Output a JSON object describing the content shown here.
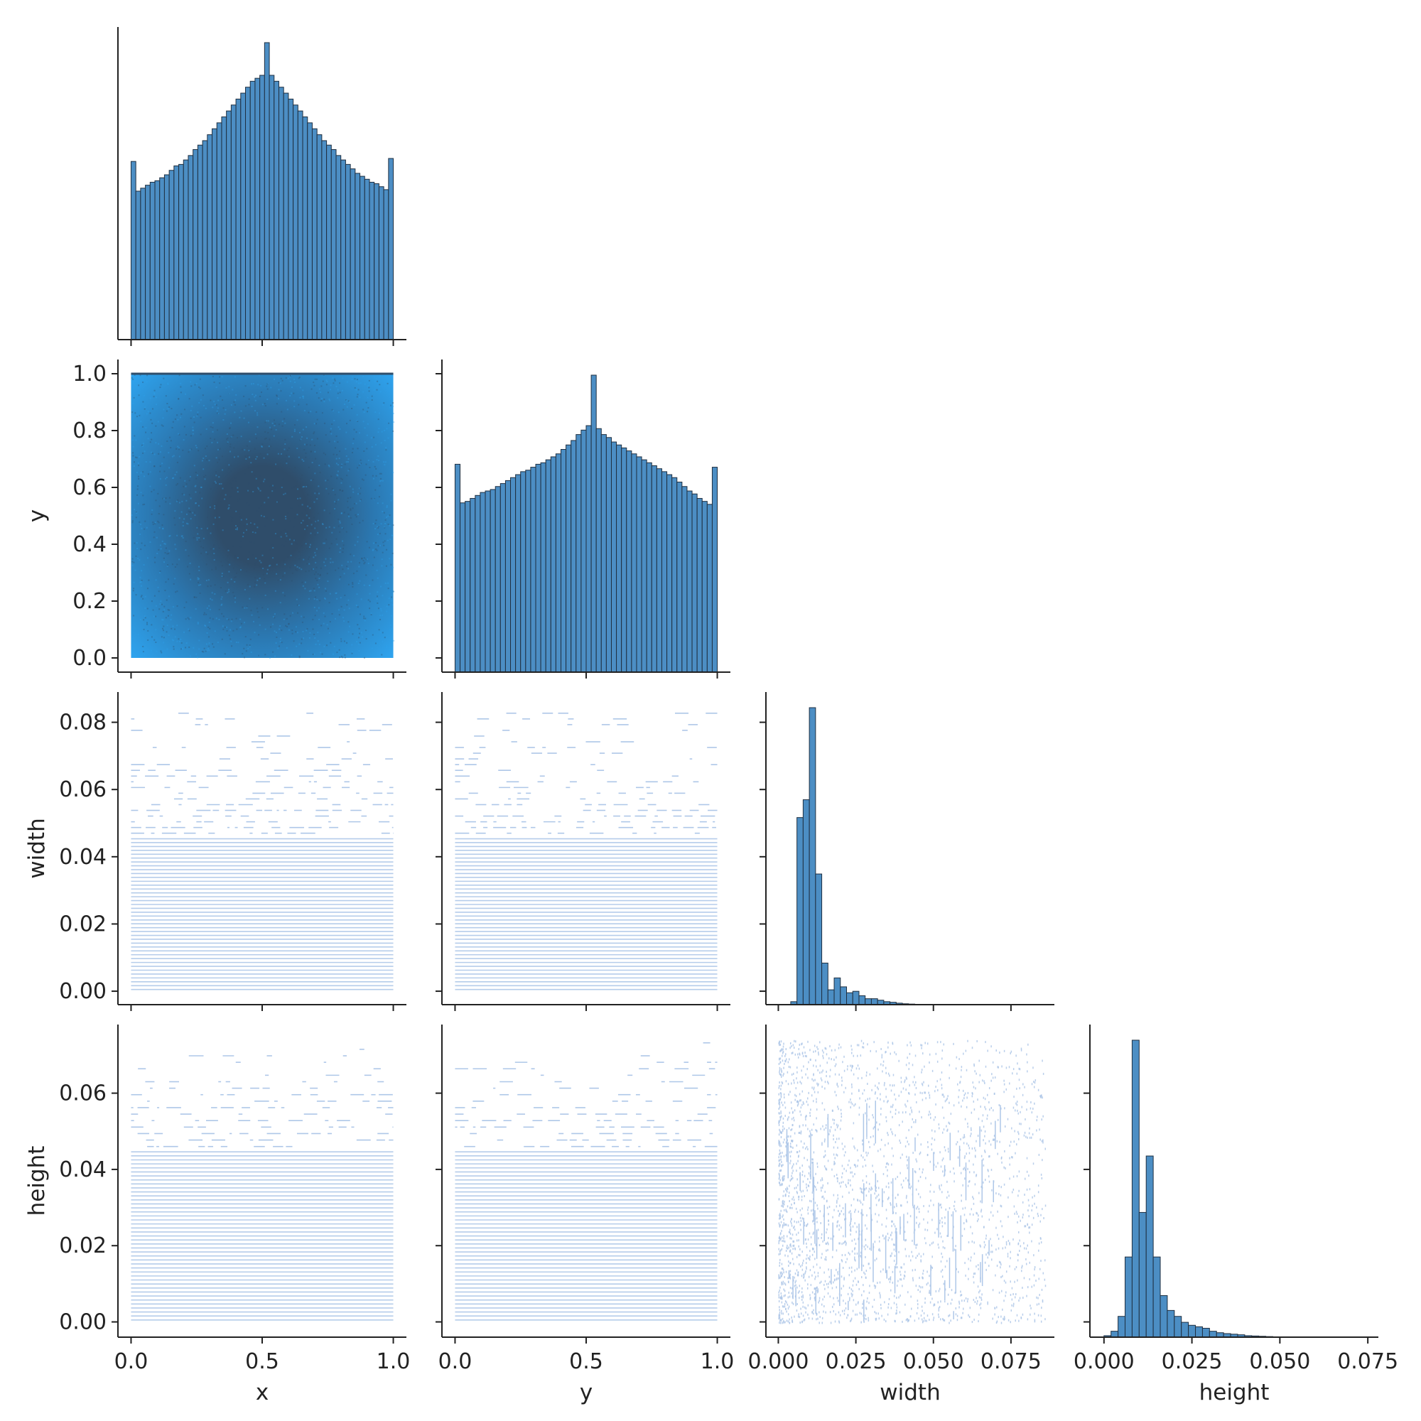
{
  "colors": {
    "hist_fill": "#4c8ec4",
    "hist_edge": "#1f2f40",
    "density_light": "#2ea3ee",
    "density_dark": "#2f4d6a",
    "scatter": "#aec7e8",
    "axis": "#222222"
  },
  "chart_data": {
    "type": "pairplot",
    "layout": "corner",
    "variables": [
      "x",
      "y",
      "width",
      "height"
    ],
    "x_tick_labels": [
      [
        "0.0",
        "0.5",
        "1.0"
      ],
      [
        "0.0",
        "0.5",
        "1.0"
      ],
      [
        "0.000",
        "0.025",
        "0.050",
        "0.075"
      ],
      [
        "0.000",
        "0.025",
        "0.050",
        "0.075"
      ]
    ],
    "y_tick_labels": {
      "y": [
        "0.0",
        "0.2",
        "0.4",
        "0.6",
        "0.8",
        "1.0"
      ],
      "width": [
        "0.00",
        "0.02",
        "0.04",
        "0.06",
        "0.08"
      ],
      "height": [
        "0.00",
        "0.02",
        "0.04",
        "0.06"
      ]
    },
    "ranges": {
      "x": [
        -0.05,
        1.05
      ],
      "y": [
        -0.05,
        1.05
      ],
      "width": [
        -0.004,
        0.089
      ],
      "height": [
        -0.004,
        0.078
      ]
    },
    "histograms": [
      {
        "variable": "x",
        "bin_range": [
          0.0,
          1.0
        ],
        "relative_counts": [
          0.6,
          0.5,
          0.51,
          0.52,
          0.53,
          0.535,
          0.545,
          0.555,
          0.57,
          0.585,
          0.59,
          0.605,
          0.62,
          0.64,
          0.655,
          0.67,
          0.69,
          0.71,
          0.73,
          0.75,
          0.77,
          0.79,
          0.81,
          0.83,
          0.85,
          0.87,
          0.88,
          0.89,
          1.0,
          0.89,
          0.87,
          0.85,
          0.83,
          0.81,
          0.79,
          0.77,
          0.75,
          0.73,
          0.71,
          0.69,
          0.67,
          0.655,
          0.64,
          0.62,
          0.605,
          0.59,
          0.575,
          0.56,
          0.55,
          0.54,
          0.53,
          0.525,
          0.515,
          0.505,
          0.61
        ]
      },
      {
        "variable": "y",
        "bin_range": [
          0.0,
          1.0
        ],
        "relative_counts": [
          0.7,
          0.57,
          0.575,
          0.585,
          0.595,
          0.605,
          0.61,
          0.615,
          0.625,
          0.635,
          0.645,
          0.655,
          0.665,
          0.675,
          0.68,
          0.69,
          0.7,
          0.705,
          0.715,
          0.725,
          0.735,
          0.75,
          0.765,
          0.78,
          0.8,
          0.815,
          0.83,
          1.0,
          0.82,
          0.8,
          0.79,
          0.775,
          0.765,
          0.755,
          0.745,
          0.735,
          0.725,
          0.715,
          0.705,
          0.695,
          0.685,
          0.675,
          0.665,
          0.655,
          0.64,
          0.625,
          0.61,
          0.6,
          0.585,
          0.575,
          0.565,
          0.69
        ]
      },
      {
        "variable": "width",
        "bin_range": [
          0.0,
          0.08
        ],
        "relative_counts": [
          0.0,
          0.0,
          0.01,
          0.63,
          0.69,
          1.0,
          0.44,
          0.14,
          0.05,
          0.09,
          0.06,
          0.04,
          0.045,
          0.03,
          0.02,
          0.02,
          0.015,
          0.01,
          0.008,
          0.005,
          0.003,
          0.002,
          0.001,
          0.0,
          0.0,
          0.0,
          0.0,
          0.0,
          0.0,
          0.0,
          0.0,
          0.0,
          0.0,
          0.0,
          0.0,
          0.0,
          0.0,
          0.0,
          0.0,
          0.0
        ]
      },
      {
        "variable": "height",
        "bin_range": [
          0.0,
          0.07
        ],
        "relative_counts": [
          0.005,
          0.02,
          0.07,
          0.27,
          1.0,
          0.42,
          0.61,
          0.27,
          0.14,
          0.09,
          0.07,
          0.05,
          0.04,
          0.035,
          0.03,
          0.02,
          0.015,
          0.012,
          0.01,
          0.008,
          0.005,
          0.004,
          0.003,
          0.002,
          0.0,
          0.0,
          0.0,
          0.0,
          0.0,
          0.0,
          0.0,
          0.0,
          0.0,
          0.0,
          0.0
        ]
      }
    ],
    "scatter_panels": [
      {
        "x": "x",
        "y": "y",
        "style": "density",
        "note_values": {
          "peak_center": [
            0.5,
            0.5
          ]
        }
      },
      {
        "x": "x",
        "y": "width",
        "style": "horizontal-lines"
      },
      {
        "x": "y",
        "y": "width",
        "style": "horizontal-lines"
      },
      {
        "x": "x",
        "y": "height",
        "style": "horizontal-lines"
      },
      {
        "x": "y",
        "y": "height",
        "style": "horizontal-lines"
      },
      {
        "x": "width",
        "y": "height",
        "style": "sparse-points"
      }
    ]
  }
}
